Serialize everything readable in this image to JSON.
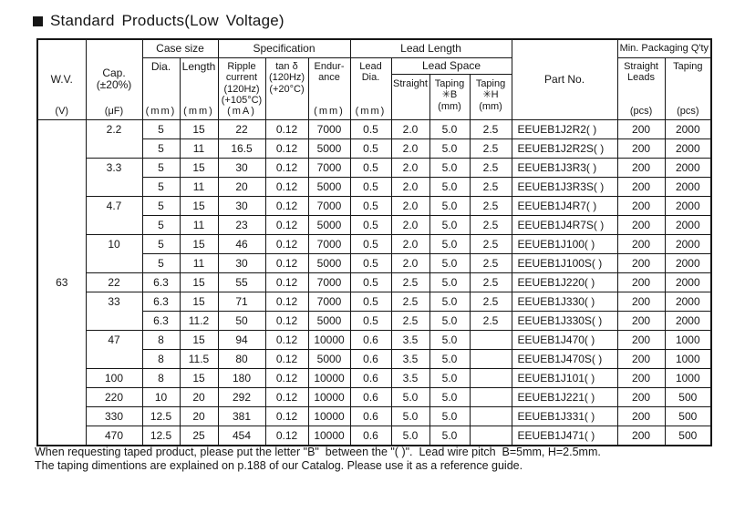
{
  "title": "Standard Products(Low Voltage)",
  "table": {
    "header": {
      "wv_label": "W.V.",
      "wv_unit": "(V)",
      "cap_label": "Cap.\n(±20%)",
      "cap_unit": "(μF)",
      "case_size": "Case size",
      "dia_label": "Dia.",
      "dia_unit": "(mm)",
      "length_label": "Length",
      "length_unit": "(mm)",
      "specification": "Specification",
      "ripple_label": "Ripple\ncurrent\n(120Hz)\n(+105°C)",
      "ripple_unit": "(mA)",
      "tan_label": "tan δ\n(120Hz)\n(+20°C)",
      "endurance_label": "Endur-\nance",
      "endurance_unit": "(mm)",
      "lead_length": "Lead Length",
      "lead_dia_label": "Lead\nDia.",
      "lead_dia_unit": "(mm)",
      "lead_space": "Lead Space",
      "straight": "Straight",
      "taping_b": "Taping\n✳B\n(mm)",
      "taping_h": "Taping\n✳H\n(mm)",
      "part_no": "Part No.",
      "min_packaging": "Min. Packaging Q'ty",
      "straight_leads": "Straight\nLeads",
      "straight_leads_unit": "(pcs)",
      "taping_label": "Taping",
      "taping_unit": "(pcs)"
    },
    "wv_value": "63",
    "rows": [
      {
        "cap": "2.2",
        "cap_span": 2,
        "cells": [
          "5",
          "15",
          "22",
          "0.12",
          "7000",
          "0.5",
          "2.0",
          "5.0",
          "2.5",
          "EEUEB1J2R2( )",
          "200",
          "2000"
        ]
      },
      {
        "cap": null,
        "cells": [
          "5",
          "11",
          "16.5",
          "0.12",
          "5000",
          "0.5",
          "2.0",
          "5.0",
          "2.5",
          "EEUEB1J2R2S( )",
          "200",
          "2000"
        ]
      },
      {
        "cap": "3.3",
        "cap_span": 2,
        "cells": [
          "5",
          "15",
          "30",
          "0.12",
          "7000",
          "0.5",
          "2.0",
          "5.0",
          "2.5",
          "EEUEB1J3R3( )",
          "200",
          "2000"
        ]
      },
      {
        "cap": null,
        "cells": [
          "5",
          "11",
          "20",
          "0.12",
          "5000",
          "0.5",
          "2.0",
          "5.0",
          "2.5",
          "EEUEB1J3R3S( )",
          "200",
          "2000"
        ]
      },
      {
        "cap": "4.7",
        "cap_span": 2,
        "cells": [
          "5",
          "15",
          "30",
          "0.12",
          "7000",
          "0.5",
          "2.0",
          "5.0",
          "2.5",
          "EEUEB1J4R7( )",
          "200",
          "2000"
        ]
      },
      {
        "cap": null,
        "cells": [
          "5",
          "11",
          "23",
          "0.12",
          "5000",
          "0.5",
          "2.0",
          "5.0",
          "2.5",
          "EEUEB1J4R7S( )",
          "200",
          "2000"
        ]
      },
      {
        "cap": "10",
        "cap_span": 2,
        "cells": [
          "5",
          "15",
          "46",
          "0.12",
          "7000",
          "0.5",
          "2.0",
          "5.0",
          "2.5",
          "EEUEB1J100( )",
          "200",
          "2000"
        ]
      },
      {
        "cap": null,
        "cells": [
          "5",
          "11",
          "30",
          "0.12",
          "5000",
          "0.5",
          "2.0",
          "5.0",
          "2.5",
          "EEUEB1J100S( )",
          "200",
          "2000"
        ]
      },
      {
        "cap": "22",
        "cap_span": 1,
        "cells": [
          "6.3",
          "15",
          "55",
          "0.12",
          "7000",
          "0.5",
          "2.5",
          "5.0",
          "2.5",
          "EEUEB1J220( )",
          "200",
          "2000"
        ]
      },
      {
        "cap": "33",
        "cap_span": 2,
        "cells": [
          "6.3",
          "15",
          "71",
          "0.12",
          "7000",
          "0.5",
          "2.5",
          "5.0",
          "2.5",
          "EEUEB1J330( )",
          "200",
          "2000"
        ]
      },
      {
        "cap": null,
        "cells": [
          "6.3",
          "11.2",
          "50",
          "0.12",
          "5000",
          "0.5",
          "2.5",
          "5.0",
          "2.5",
          "EEUEB1J330S( )",
          "200",
          "2000"
        ]
      },
      {
        "cap": "47",
        "cap_span": 2,
        "cells": [
          "8",
          "15",
          "94",
          "0.12",
          "10000",
          "0.6",
          "3.5",
          "5.0",
          "",
          "EEUEB1J470( )",
          "200",
          "1000"
        ]
      },
      {
        "cap": null,
        "cells": [
          "8",
          "11.5",
          "80",
          "0.12",
          "5000",
          "0.6",
          "3.5",
          "5.0",
          "",
          "EEUEB1J470S( )",
          "200",
          "1000"
        ]
      },
      {
        "cap": "100",
        "cap_span": 1,
        "cells": [
          "8",
          "15",
          "180",
          "0.12",
          "10000",
          "0.6",
          "3.5",
          "5.0",
          "",
          "EEUEB1J101( )",
          "200",
          "1000"
        ]
      },
      {
        "cap": "220",
        "cap_span": 1,
        "cells": [
          "10",
          "20",
          "292",
          "0.12",
          "10000",
          "0.6",
          "5.0",
          "5.0",
          "",
          "EEUEB1J221( )",
          "200",
          "500"
        ]
      },
      {
        "cap": "330",
        "cap_span": 1,
        "cells": [
          "12.5",
          "20",
          "381",
          "0.12",
          "10000",
          "0.6",
          "5.0",
          "5.0",
          "",
          "EEUEB1J331( )",
          "200",
          "500"
        ]
      },
      {
        "cap": "470",
        "cap_span": 1,
        "cells": [
          "12.5",
          "25",
          "454",
          "0.12",
          "10000",
          "0.6",
          "5.0",
          "5.0",
          "",
          "EEUEB1J471( )",
          "200",
          "500"
        ]
      }
    ]
  },
  "footer": {
    "line1": "When requesting taped product, please put the letter \"B\"  between the \"( )\".  Lead wire pitch  B=5mm, H=2.5mm.",
    "line2": "The taping dimentions are explained on p.188 of our Catalog. Please use it as a reference guide."
  }
}
